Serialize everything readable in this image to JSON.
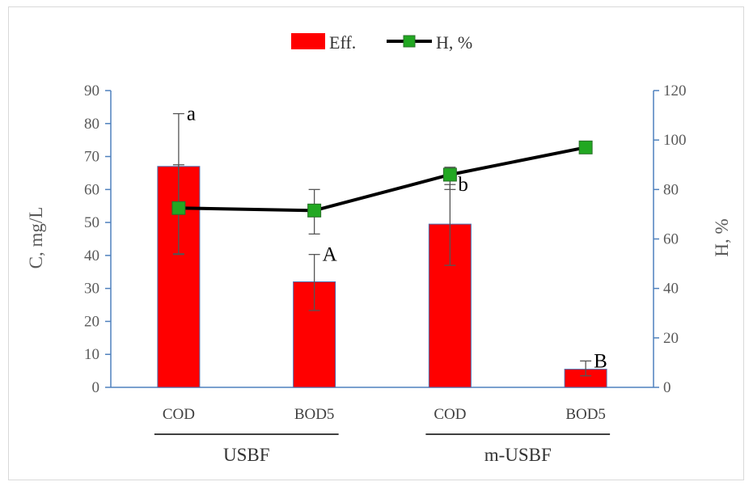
{
  "chart_data": {
    "type": "bar",
    "categories": [
      "COD",
      "BOD5",
      "COD",
      "BOD5"
    ],
    "groups": [
      {
        "label": "USBF"
      },
      {
        "label": "m-USBF"
      }
    ],
    "left_axis": {
      "label": "C, mg/L",
      "ylim": [
        0,
        90
      ],
      "ticks": [
        0,
        10,
        20,
        30,
        40,
        50,
        60,
        70,
        80,
        90
      ]
    },
    "right_axis": {
      "label": "H, %",
      "ylim": [
        0,
        120
      ],
      "ticks": [
        0,
        20,
        40,
        60,
        80,
        100,
        120
      ]
    },
    "series": [
      {
        "name": "Eff.",
        "kind": "bar",
        "axis": "left",
        "color": "#ff0000",
        "values": [
          67,
          32,
          49.5,
          5.5
        ],
        "error": [
          [
            40.3,
            83
          ],
          [
            23.3,
            40.3
          ],
          [
            37,
            61.5
          ],
          [
            3.5,
            8
          ]
        ],
        "letters": [
          "a",
          "A",
          "b",
          "B"
        ]
      },
      {
        "name": "H, %",
        "kind": "line",
        "axis": "right",
        "color": "#000000",
        "marker_color": "#22a822",
        "values": [
          72.5,
          71.5,
          86,
          97
        ],
        "error": [
          [
            54,
            90
          ],
          [
            62,
            80
          ],
          [
            80,
            89
          ],
          [
            96,
            98
          ]
        ]
      }
    ],
    "legend_position": "top-center",
    "grid": false
  }
}
